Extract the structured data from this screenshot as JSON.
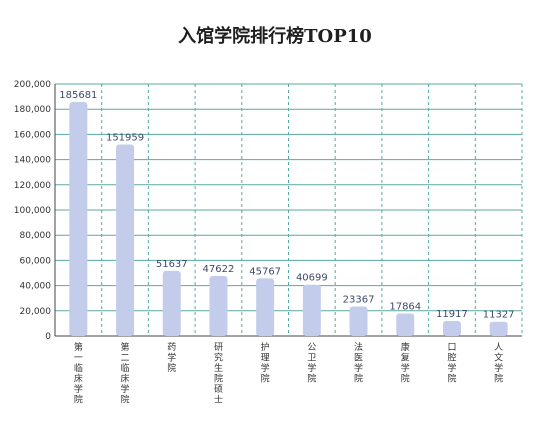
{
  "chart_data": {
    "type": "bar",
    "title": "入馆学院排行榜TOP10",
    "xlabel": "",
    "ylabel": "",
    "categories": [
      "第一临床学院",
      "第二临床学院",
      "药学院",
      "研究生院硕士",
      "护理学院",
      "公卫学院",
      "法医学院",
      "康复学院",
      "口腔学院",
      "人文学院"
    ],
    "values": [
      185681,
      151959,
      51637,
      47622,
      45767,
      40699,
      23367,
      17864,
      11917,
      11327
    ],
    "ylim": [
      0,
      200000
    ],
    "yticks": [
      0,
      20000,
      40000,
      60000,
      80000,
      100000,
      120000,
      140000,
      160000,
      180000,
      200000
    ],
    "ytick_labels": [
      "0",
      "20,000",
      "40,000",
      "60,000",
      "80,000",
      "100,000",
      "120,000",
      "140,000",
      "160,000",
      "180,000",
      "200,000"
    ],
    "data_labels": [
      "185681",
      "151959",
      "51637",
      "47622",
      "45767",
      "40699",
      "23367",
      "17864",
      "11917",
      "11327"
    ],
    "grid": true,
    "legend": "none",
    "colors": {
      "bar": "#c3cdeb",
      "grid": "#5aa9a2",
      "axis": "#444444",
      "data_label": "#3c4a6b"
    }
  }
}
